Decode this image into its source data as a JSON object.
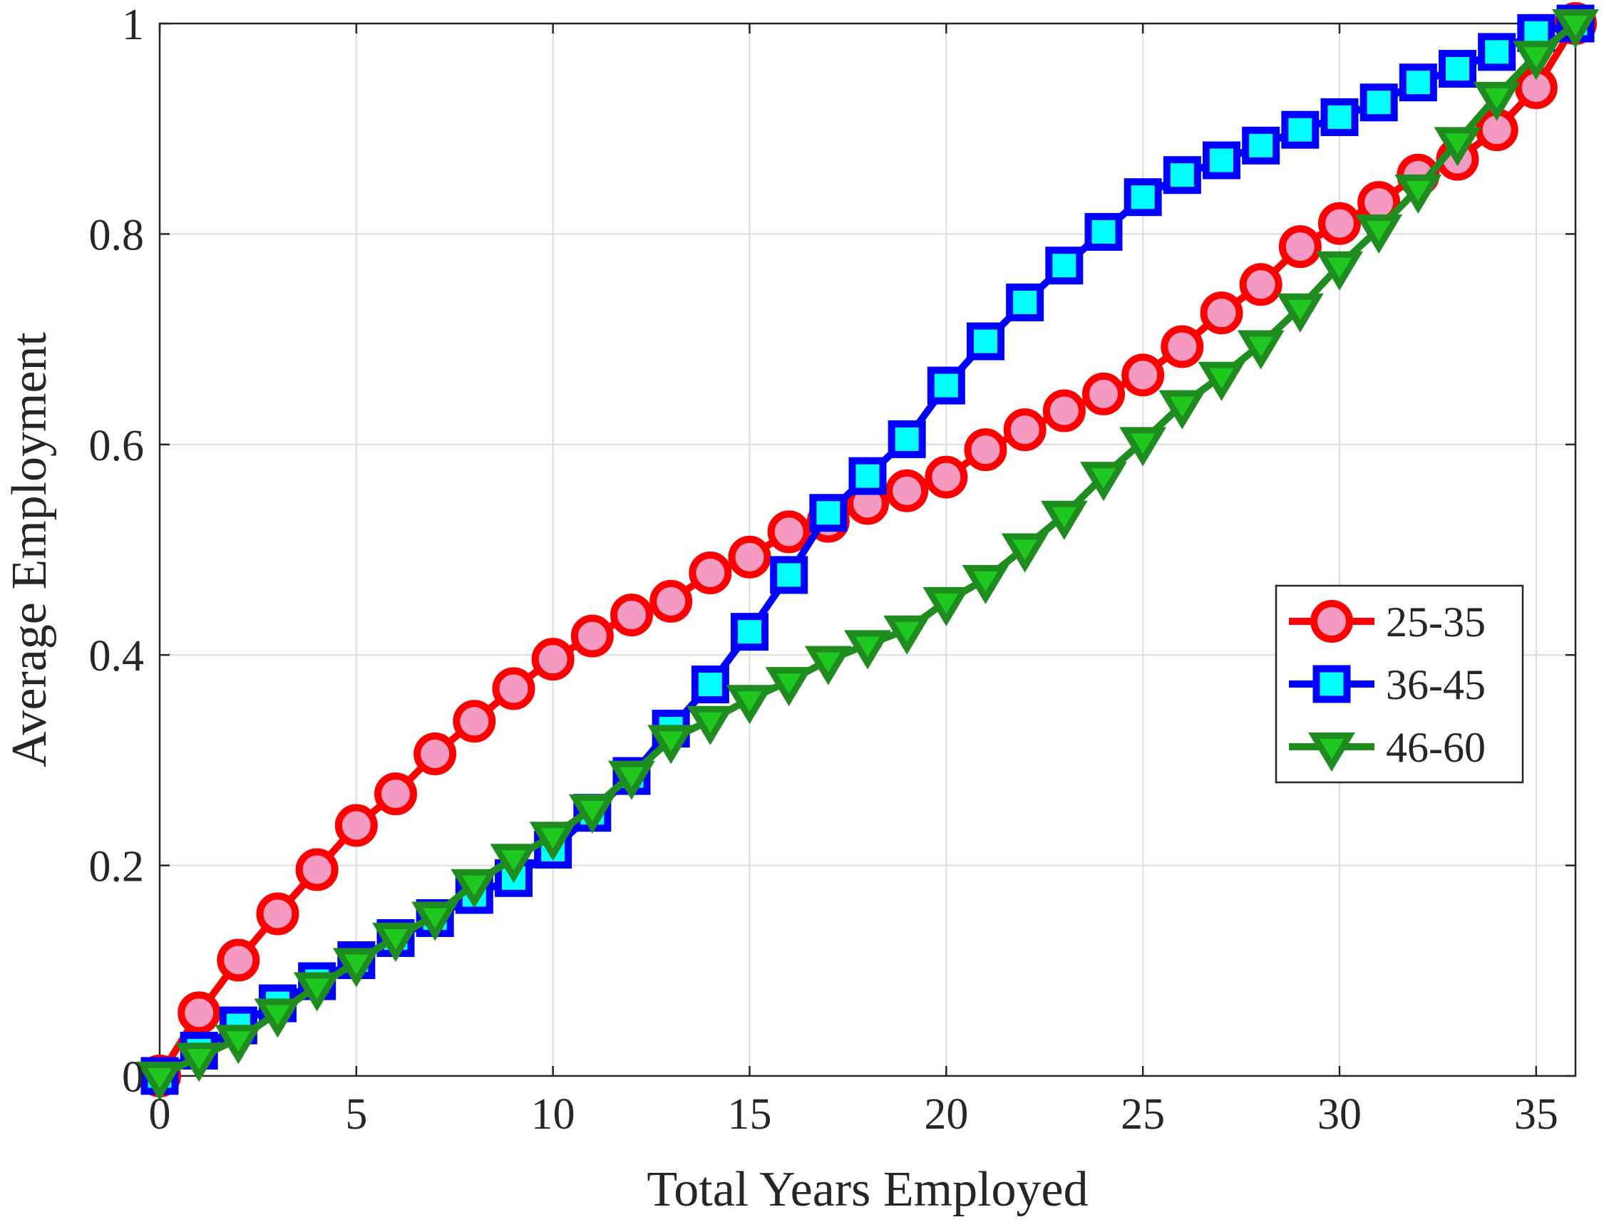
{
  "chart_data": {
    "type": "line",
    "title": "",
    "xlabel": "Total Years Employed",
    "ylabel": "Average Employment",
    "xlim": [
      0,
      36
    ],
    "ylim": [
      0,
      1
    ],
    "xticks": [
      0,
      5,
      10,
      15,
      20,
      25,
      30,
      35
    ],
    "xtick_labels": [
      "0",
      "5",
      "10",
      "15",
      "20",
      "25",
      "30",
      "35"
    ],
    "yticks": [
      0,
      0.2,
      0.4,
      0.6,
      0.8,
      1
    ],
    "ytick_labels": [
      "0",
      "0.2",
      "0.4",
      "0.6",
      "0.8",
      "1"
    ],
    "grid": true,
    "legend_position": "right",
    "x": [
      0,
      1,
      2,
      3,
      4,
      5,
      6,
      7,
      8,
      9,
      10,
      11,
      12,
      13,
      14,
      15,
      16,
      17,
      18,
      19,
      20,
      21,
      22,
      23,
      24,
      25,
      26,
      27,
      28,
      29,
      30,
      31,
      32,
      33,
      34,
      35,
      36
    ],
    "series": [
      {
        "name": "25-35",
        "marker": "circle",
        "line_color": "#ff0000",
        "marker_fill": "#f79ac1",
        "values": [
          0,
          0.06,
          0.11,
          0.154,
          0.196,
          0.238,
          0.268,
          0.306,
          0.337,
          0.368,
          0.396,
          0.418,
          0.438,
          0.451,
          0.478,
          0.493,
          0.517,
          0.527,
          0.544,
          0.556,
          0.569,
          0.595,
          0.614,
          0.632,
          0.648,
          0.666,
          0.693,
          0.725,
          0.752,
          0.788,
          0.81,
          0.83,
          0.856,
          0.871,
          0.899,
          0.939,
          1
        ]
      },
      {
        "name": "36-45",
        "marker": "square",
        "line_color": "#0000ff",
        "marker_fill": "#00ffff",
        "values": [
          0,
          0.024,
          0.048,
          0.069,
          0.09,
          0.11,
          0.131,
          0.15,
          0.172,
          0.188,
          0.215,
          0.25,
          0.285,
          0.33,
          0.372,
          0.422,
          0.476,
          0.535,
          0.57,
          0.605,
          0.656,
          0.698,
          0.735,
          0.77,
          0.802,
          0.835,
          0.856,
          0.87,
          0.884,
          0.899,
          0.911,
          0.925,
          0.944,
          0.957,
          0.973,
          0.991,
          1
        ]
      },
      {
        "name": "46-60",
        "marker": "triangle-down",
        "line_color": "#1e8c1e",
        "marker_fill": "#1ec81e",
        "values": [
          0,
          0.018,
          0.035,
          0.06,
          0.085,
          0.108,
          0.132,
          0.152,
          0.183,
          0.207,
          0.228,
          0.254,
          0.286,
          0.32,
          0.338,
          0.358,
          0.375,
          0.395,
          0.41,
          0.424,
          0.451,
          0.472,
          0.502,
          0.533,
          0.57,
          0.603,
          0.638,
          0.665,
          0.695,
          0.73,
          0.77,
          0.805,
          0.843,
          0.888,
          0.931,
          0.97,
          1
        ]
      }
    ]
  }
}
